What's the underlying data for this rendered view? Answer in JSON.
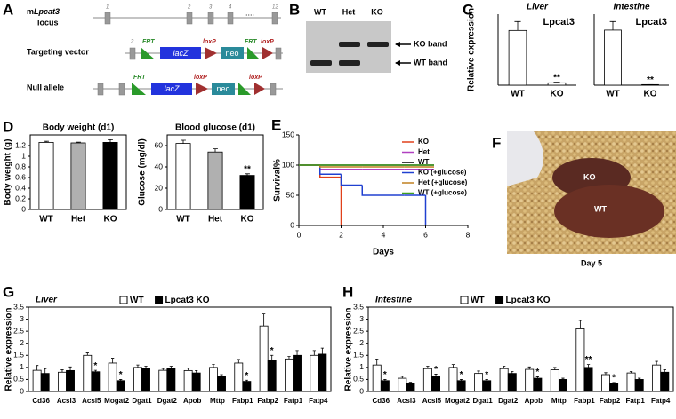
{
  "panel_labels": [
    "A",
    "B",
    "C",
    "D",
    "E",
    "F",
    "G",
    "H"
  ],
  "diagram": {
    "locus_prefix": "m",
    "locus_gene": "Lpcat3",
    "locus_suffix": "locus",
    "vector_label": "Targeting vector",
    "null_label": "Null allele",
    "exon_numbers": [
      "1",
      "2",
      "3",
      "4",
      "12"
    ],
    "ellipsis": "....",
    "frt": "FRT",
    "lacz": "lacZ",
    "loxp": "loxP",
    "neo": "neo"
  },
  "gel": {
    "lanes": [
      "WT",
      "Het",
      "KO"
    ],
    "ko_band": "KO band",
    "wt_band": "WT band"
  },
  "photo": {
    "ko": "KO",
    "wt": "WT",
    "caption": "Day 5"
  },
  "chart_data": [
    {
      "type": "bar",
      "title": "Liver",
      "annotation": "Lpcat3",
      "y_label": "Relative expression",
      "categories": [
        "WT",
        "KO"
      ],
      "values": [
        1.85,
        0.08
      ],
      "errors": [
        0.3,
        0.02
      ],
      "significance": [
        null,
        "**"
      ],
      "colors": [
        "#ffffff",
        "#ffffff"
      ],
      "ylim": [
        0,
        2.4
      ]
    },
    {
      "type": "bar",
      "title": "Intestine",
      "annotation": "Lpcat3",
      "categories": [
        "WT",
        "KO"
      ],
      "values": [
        0.97,
        0.01
      ],
      "errors": [
        0.15,
        0
      ],
      "significance": [
        null,
        "**"
      ],
      "colors": [
        "#ffffff",
        "#ffffff"
      ],
      "ylim": [
        0,
        1.25
      ]
    },
    {
      "type": "bar",
      "title": "Body weight (d1)",
      "y_label": "Body weight (g)",
      "categories": [
        "WT",
        "Het",
        "KO"
      ],
      "values": [
        1.26,
        1.25,
        1.26
      ],
      "errors": [
        0.02,
        0.015,
        0.05
      ],
      "colors": [
        "#ffffff",
        "#b0b0b0",
        "#000000"
      ],
      "ylim": [
        0,
        1.4
      ],
      "yticks": [
        0,
        0.2,
        0.4,
        0.6,
        0.8,
        1,
        1.2
      ]
    },
    {
      "type": "bar",
      "title": "Blood glucose (d1)",
      "y_label": "Glucose (mg/dl)",
      "categories": [
        "WT",
        "Het",
        "KO"
      ],
      "values": [
        62,
        54,
        32
      ],
      "errors": [
        3,
        3,
        1.5
      ],
      "significance": [
        null,
        null,
        "**"
      ],
      "colors": [
        "#ffffff",
        "#b0b0b0",
        "#000000"
      ],
      "ylim": [
        0,
        70
      ],
      "yticks": [
        0,
        20,
        40,
        60
      ]
    },
    {
      "type": "line",
      "y_label": "Survival%",
      "x_label": "Days",
      "x": [
        0,
        1,
        2,
        3,
        4,
        5,
        6
      ],
      "series": [
        {
          "name": "KO",
          "color": "#e0401a",
          "values": [
            100,
            80,
            0,
            null,
            null,
            null,
            null
          ]
        },
        {
          "name": "Het",
          "color": "#b040c0",
          "values": [
            100,
            93,
            93,
            93,
            93,
            93,
            93
          ]
        },
        {
          "name": "WT",
          "color": "#000000",
          "values": [
            100,
            100,
            100,
            100,
            100,
            100,
            100
          ]
        },
        {
          "name": "KO (+glucose)",
          "color": "#2040d0",
          "values": [
            100,
            85,
            67,
            50,
            50,
            50,
            0
          ]
        },
        {
          "name": "Het (+glucose)",
          "color": "#c08020",
          "values": [
            100,
            97,
            97,
            97,
            97,
            97,
            97
          ]
        },
        {
          "name": "WT (+glucose)",
          "color": "#40a020",
          "values": [
            100,
            100,
            100,
            100,
            100,
            100,
            100
          ]
        }
      ],
      "xlim": [
        0,
        8
      ],
      "xticks": [
        0,
        2,
        4,
        6,
        8
      ],
      "ylim": [
        0,
        150
      ],
      "yticks": [
        0,
        50,
        100,
        150
      ]
    },
    {
      "type": "bar",
      "title": "Liver",
      "y_label": "Relative expression",
      "categories": [
        "Cd36",
        "Acsl3",
        "Acsl5",
        "Mogat2",
        "Dgat1",
        "Dgat2",
        "Apob",
        "Mttp",
        "Fabp1",
        "Fabp2",
        "Fatp1",
        "Fatp4"
      ],
      "series": [
        {
          "name": "WT",
          "color": "#ffffff",
          "values": [
            0.88,
            0.8,
            1.5,
            1.18,
            1.0,
            0.88,
            0.87,
            1.0,
            1.18,
            2.72,
            1.35,
            1.5
          ],
          "errors": [
            0.2,
            0.1,
            0.1,
            0.2,
            0.1,
            0.08,
            0.1,
            0.12,
            0.15,
            0.5,
            0.1,
            0.2
          ]
        },
        {
          "name": "Lpcat3 KO",
          "color": "#000000",
          "values": [
            0.75,
            0.87,
            0.82,
            0.45,
            0.95,
            0.95,
            0.77,
            0.62,
            0.42,
            1.3,
            1.5,
            1.55
          ],
          "errors": [
            0.2,
            0.15,
            0.06,
            0.05,
            0.1,
            0.1,
            0.1,
            0.08,
            0.05,
            0.2,
            0.2,
            0.25
          ],
          "significance": [
            null,
            null,
            "*",
            "*",
            null,
            null,
            null,
            null,
            "*",
            "*",
            null,
            null
          ]
        }
      ],
      "ylim": [
        0,
        3.5
      ],
      "yticks": [
        0,
        0.5,
        1,
        1.5,
        2,
        2.5,
        3,
        3.5
      ]
    },
    {
      "type": "bar",
      "title": "Intestine",
      "y_label": "Relative expression",
      "categories": [
        "Cd36",
        "Acsl3",
        "Acsl5",
        "Mogat2",
        "Dgat1",
        "Dgat2",
        "Apob",
        "Mttp",
        "Fabp1",
        "Fabp2",
        "Fatp1",
        "Fatp4"
      ],
      "series": [
        {
          "name": "WT",
          "color": "#ffffff",
          "values": [
            1.1,
            0.55,
            0.95,
            1.0,
            0.75,
            0.95,
            0.92,
            0.9,
            2.6,
            0.7,
            0.77,
            1.1
          ],
          "errors": [
            0.25,
            0.08,
            0.1,
            0.12,
            0.1,
            0.1,
            0.1,
            0.1,
            0.35,
            0.08,
            0.06,
            0.15
          ]
        },
        {
          "name": "Lpcat3 KO",
          "color": "#000000",
          "values": [
            0.45,
            0.35,
            0.62,
            0.45,
            0.45,
            0.75,
            0.55,
            0.5,
            1.0,
            0.32,
            0.5,
            0.8
          ],
          "errors": [
            0.05,
            0.03,
            0.1,
            0.05,
            0.05,
            0.08,
            0.06,
            0.05,
            0.12,
            0.05,
            0.05,
            0.1
          ],
          "significance": [
            "*",
            null,
            "*",
            "*",
            "*",
            null,
            "*",
            null,
            "**",
            "*",
            null,
            null
          ]
        }
      ],
      "ylim": [
        0,
        3.5
      ],
      "yticks": [
        0,
        0.5,
        1,
        1.5,
        2,
        2.5,
        3,
        3.5
      ]
    }
  ]
}
